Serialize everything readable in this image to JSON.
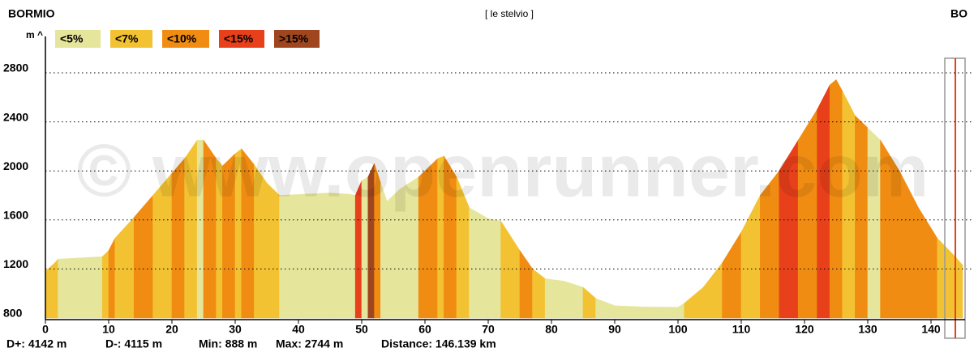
{
  "chart_data": {
    "type": "elevation",
    "title": "[ le stelvio ]",
    "start_label": "BORMIO",
    "end_label": "BO",
    "y_label": "m ^",
    "watermark": "© www.openrunner.com",
    "legend": [
      {
        "name": "<5%",
        "color": "#e5e59b"
      },
      {
        "name": "<7%",
        "color": "#f3c232"
      },
      {
        "name": "<10%",
        "color": "#f08c12"
      },
      {
        "name": "<15%",
        "color": "#e8401a"
      },
      {
        "name": ">15%",
        "color": "#a0461e"
      }
    ],
    "stats": [
      "D+: 4142 m",
      "D-: 4115 m",
      "Min: 888 m",
      "Max: 2744 m",
      "Distance: 146.139 km"
    ],
    "distance": [
      0,
      1.5,
      2,
      9,
      10,
      11,
      14,
      17,
      20,
      22,
      24,
      25,
      27,
      28,
      30,
      31,
      33,
      35,
      37,
      45,
      48,
      49,
      50,
      51,
      52,
      53,
      54,
      56,
      59,
      62,
      63,
      65,
      67,
      70,
      72,
      75,
      77,
      79,
      82,
      85,
      87,
      90,
      95,
      100,
      101,
      104,
      107,
      110,
      113,
      116,
      119,
      122,
      124,
      125,
      126,
      128,
      130,
      132,
      135,
      138,
      141,
      144,
      145
    ],
    "elevation": [
      1180,
      1250,
      1280,
      1300,
      1350,
      1450,
      1620,
      1800,
      1980,
      2100,
      2250,
      2250,
      2100,
      2040,
      2140,
      2180,
      2050,
      1900,
      1800,
      1820,
      1810,
      1800,
      1920,
      1950,
      2060,
      1900,
      1750,
      1850,
      1950,
      2100,
      2120,
      1950,
      1700,
      1610,
      1590,
      1350,
      1200,
      1120,
      1100,
      1050,
      960,
      900,
      890,
      888,
      920,
      1050,
      1250,
      1500,
      1800,
      2000,
      2250,
      2500,
      2700,
      2744,
      2650,
      2450,
      2350,
      2250,
      2000,
      1700,
      1450,
      1290,
      1230
    ],
    "grade": [
      1,
      1,
      0,
      1,
      2,
      1,
      2,
      1,
      2,
      1,
      0,
      2,
      1,
      2,
      1,
      2,
      1,
      1,
      0,
      0,
      0,
      3,
      0,
      4,
      2,
      0,
      0,
      0,
      2,
      1,
      2,
      1,
      0,
      0,
      1,
      2,
      1,
      0,
      0,
      1,
      0,
      0,
      0,
      0,
      1,
      1,
      2,
      1,
      2,
      3,
      2,
      3,
      2,
      2,
      1,
      2,
      0,
      2,
      2,
      2,
      1,
      1
    ],
    "xlim": [
      0,
      145
    ],
    "ylim": [
      800,
      3000
    ],
    "xticks": [
      0,
      10,
      20,
      30,
      40,
      50,
      60,
      70,
      80,
      90,
      100,
      110,
      120,
      130,
      140
    ],
    "yticks": [
      800,
      1200,
      1600,
      2000,
      2400,
      2800
    ],
    "grid": true
  }
}
